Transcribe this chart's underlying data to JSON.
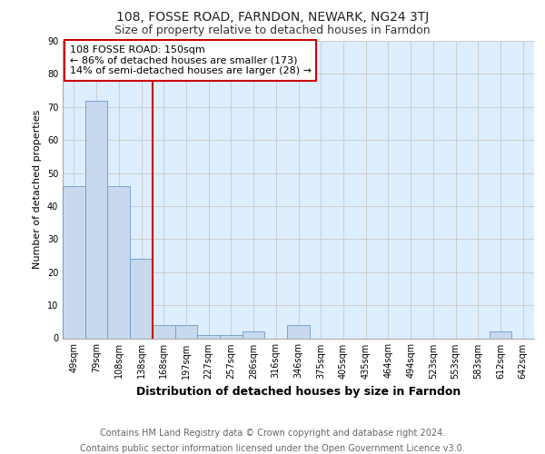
{
  "title": "108, FOSSE ROAD, FARNDON, NEWARK, NG24 3TJ",
  "subtitle": "Size of property relative to detached houses in Farndon",
  "xlabel": "Distribution of detached houses by size in Farndon",
  "ylabel": "Number of detached properties",
  "categories": [
    "49sqm",
    "79sqm",
    "108sqm",
    "138sqm",
    "168sqm",
    "197sqm",
    "227sqm",
    "257sqm",
    "286sqm",
    "316sqm",
    "346sqm",
    "375sqm",
    "405sqm",
    "435sqm",
    "464sqm",
    "494sqm",
    "523sqm",
    "553sqm",
    "583sqm",
    "612sqm",
    "642sqm"
  ],
  "values": [
    46,
    72,
    46,
    24,
    4,
    4,
    1,
    1,
    2,
    0,
    4,
    0,
    0,
    0,
    0,
    0,
    0,
    0,
    0,
    2,
    0
  ],
  "bar_color": "#c8d9ee",
  "bar_edge_color": "#6699cc",
  "vline_color": "#cc0000",
  "annotation_text": "108 FOSSE ROAD: 150sqm\n← 86% of detached houses are smaller (173)\n14% of semi-detached houses are larger (28) →",
  "annotation_box_color": "#ffffff",
  "annotation_box_edge": "#cc0000",
  "ylim": [
    0,
    90
  ],
  "yticks": [
    0,
    10,
    20,
    30,
    40,
    50,
    60,
    70,
    80,
    90
  ],
  "grid_color": "#cccccc",
  "plot_bg": "#ddeeff",
  "footer1": "Contains HM Land Registry data © Crown copyright and database right 2024.",
  "footer2": "Contains public sector information licensed under the Open Government Licence v3.0.",
  "title_fontsize": 10,
  "subtitle_fontsize": 9,
  "xlabel_fontsize": 9,
  "ylabel_fontsize": 8,
  "tick_fontsize": 7,
  "annotation_fontsize": 8,
  "footer_fontsize": 7
}
